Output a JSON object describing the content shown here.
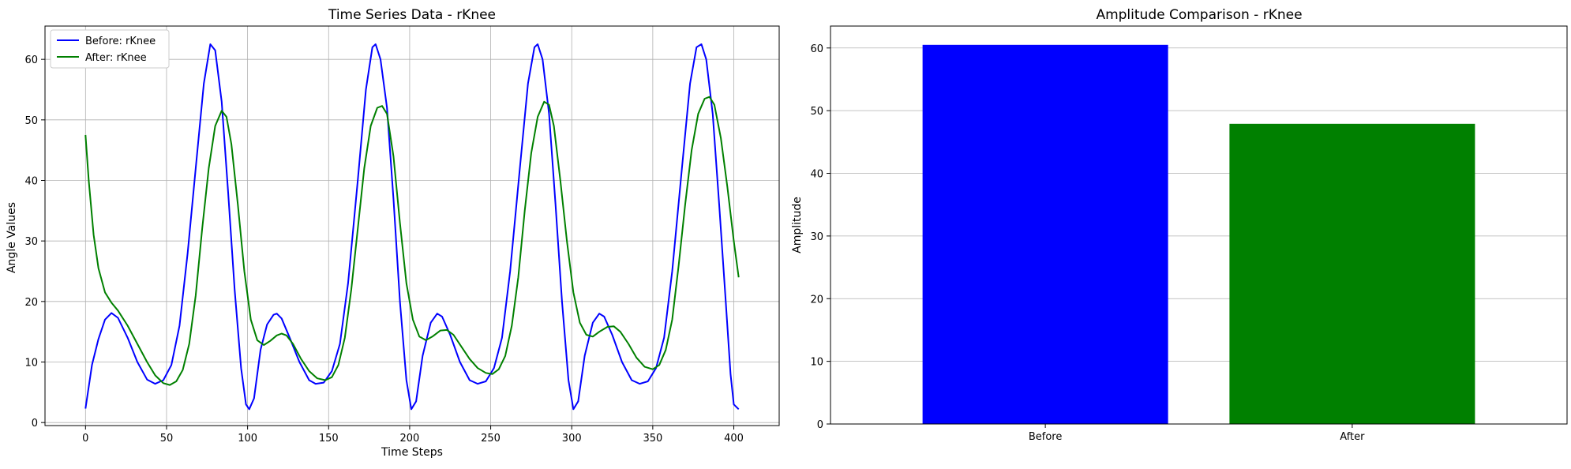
{
  "chart_data": [
    {
      "type": "line",
      "title": "Time Series Data - rKnee",
      "xlabel": "Time Steps",
      "ylabel": "Angle Values",
      "xlim": [
        -25,
        428
      ],
      "ylim": [
        -0.5,
        65.5
      ],
      "xticks": [
        0,
        50,
        100,
        150,
        200,
        250,
        300,
        350,
        400
      ],
      "yticks": [
        0,
        10,
        20,
        30,
        40,
        50,
        60
      ],
      "grid": true,
      "legend_position": "top-left",
      "series": [
        {
          "name": "Before: rKnee",
          "color": "#0000ff",
          "points": [
            [
              0,
              2.3
            ],
            [
              4,
              9.5
            ],
            [
              8,
              13.8
            ],
            [
              12,
              17
            ],
            [
              16,
              18.1
            ],
            [
              20,
              17.3
            ],
            [
              26,
              14
            ],
            [
              32,
              10
            ],
            [
              38,
              7.1
            ],
            [
              43,
              6.4
            ],
            [
              48,
              7
            ],
            [
              53,
              9.5
            ],
            [
              58,
              16
            ],
            [
              63,
              28
            ],
            [
              68,
              42
            ],
            [
              73,
              56
            ],
            [
              77,
              62.5
            ],
            [
              80,
              61.5
            ],
            [
              84,
              53
            ],
            [
              88,
              38
            ],
            [
              92,
              22
            ],
            [
              96,
              9
            ],
            [
              99,
              3
            ],
            [
              101,
              2.2
            ],
            [
              104,
              4
            ],
            [
              108,
              12
            ],
            [
              112,
              16.2
            ],
            [
              116,
              17.8
            ],
            [
              118,
              18
            ],
            [
              121,
              17.2
            ],
            [
              126,
              14
            ],
            [
              132,
              10
            ],
            [
              138,
              7
            ],
            [
              142,
              6.4
            ],
            [
              147,
              6.6
            ],
            [
              152,
              8.5
            ],
            [
              157,
              13
            ],
            [
              162,
              23
            ],
            [
              168,
              40
            ],
            [
              173,
              55
            ],
            [
              177,
              62
            ],
            [
              179,
              62.5
            ],
            [
              182,
              60
            ],
            [
              186,
              52
            ],
            [
              190,
              37
            ],
            [
              194,
              20
            ],
            [
              198,
              7
            ],
            [
              201,
              2.2
            ],
            [
              204,
              3.5
            ],
            [
              208,
              11
            ],
            [
              213,
              16.5
            ],
            [
              217,
              18
            ],
            [
              220,
              17.5
            ],
            [
              225,
              14.5
            ],
            [
              231,
              10
            ],
            [
              237,
              7
            ],
            [
              242,
              6.4
            ],
            [
              247,
              6.8
            ],
            [
              252,
              9
            ],
            [
              257,
              14
            ],
            [
              262,
              25
            ],
            [
              268,
              42
            ],
            [
              273,
              56
            ],
            [
              277,
              62
            ],
            [
              279,
              62.5
            ],
            [
              282,
              60
            ],
            [
              286,
              51
            ],
            [
              290,
              36
            ],
            [
              294,
              20
            ],
            [
              298,
              7
            ],
            [
              301,
              2.2
            ],
            [
              304,
              3.5
            ],
            [
              308,
              11
            ],
            [
              313,
              16.5
            ],
            [
              317,
              18
            ],
            [
              320,
              17.5
            ],
            [
              325,
              14.5
            ],
            [
              331,
              10
            ],
            [
              337,
              7
            ],
            [
              342,
              6.4
            ],
            [
              347,
              6.8
            ],
            [
              352,
              9
            ],
            [
              357,
              14
            ],
            [
              362,
              25
            ],
            [
              368,
              42
            ],
            [
              373,
              56
            ],
            [
              377,
              62
            ],
            [
              380,
              62.5
            ],
            [
              383,
              60
            ],
            [
              387,
              51
            ],
            [
              391,
              36
            ],
            [
              395,
              20
            ],
            [
              398,
              8
            ],
            [
              400,
              3
            ],
            [
              403,
              2.2
            ]
          ]
        },
        {
          "name": "After: rKnee",
          "color": "#008000",
          "points": [
            [
              0,
              47.5
            ],
            [
              2,
              40
            ],
            [
              5,
              31
            ],
            [
              8,
              25.5
            ],
            [
              12,
              21.5
            ],
            [
              16,
              19.8
            ],
            [
              20,
              18.5
            ],
            [
              26,
              16
            ],
            [
              32,
              13
            ],
            [
              38,
              10
            ],
            [
              43,
              7.8
            ],
            [
              48,
              6.5
            ],
            [
              52,
              6.2
            ],
            [
              56,
              6.8
            ],
            [
              60,
              8.7
            ],
            [
              64,
              13
            ],
            [
              68,
              21
            ],
            [
              72,
              32
            ],
            [
              76,
              42
            ],
            [
              80,
              49
            ],
            [
              84,
              51.5
            ],
            [
              87,
              50.5
            ],
            [
              90,
              46
            ],
            [
              94,
              36
            ],
            [
              98,
              25
            ],
            [
              102,
              17
            ],
            [
              106,
              13.6
            ],
            [
              110,
              12.8
            ],
            [
              114,
              13.5
            ],
            [
              118,
              14.4
            ],
            [
              121,
              14.7
            ],
            [
              124,
              14.4
            ],
            [
              128,
              13
            ],
            [
              133,
              10.5
            ],
            [
              138,
              8.5
            ],
            [
              143,
              7.3
            ],
            [
              148,
              7
            ],
            [
              152,
              7.5
            ],
            [
              156,
              9.5
            ],
            [
              160,
              14
            ],
            [
              164,
              22
            ],
            [
              168,
              32
            ],
            [
              172,
              42
            ],
            [
              176,
              49
            ],
            [
              180,
              52
            ],
            [
              183,
              52.3
            ],
            [
              186,
              51
            ],
            [
              190,
              44
            ],
            [
              194,
              33
            ],
            [
              198,
              23
            ],
            [
              202,
              17
            ],
            [
              206,
              14.2
            ],
            [
              210,
              13.6
            ],
            [
              214,
              14.2
            ],
            [
              219,
              15.2
            ],
            [
              223,
              15.3
            ],
            [
              227,
              14.5
            ],
            [
              232,
              12.5
            ],
            [
              237,
              10.5
            ],
            [
              242,
              9
            ],
            [
              247,
              8.2
            ],
            [
              251,
              8
            ],
            [
              255,
              8.8
            ],
            [
              259,
              11
            ],
            [
              263,
              16
            ],
            [
              267,
              24
            ],
            [
              271,
              35
            ],
            [
              275,
              44.5
            ],
            [
              279,
              50.5
            ],
            [
              283,
              53
            ],
            [
              286,
              52.5
            ],
            [
              289,
              49
            ],
            [
              293,
              40
            ],
            [
              297,
              30
            ],
            [
              301,
              21.5
            ],
            [
              305,
              16.5
            ],
            [
              309,
              14.5
            ],
            [
              313,
              14.2
            ],
            [
              317,
              15
            ],
            [
              322,
              15.8
            ],
            [
              326,
              15.9
            ],
            [
              330,
              15
            ],
            [
              335,
              13
            ],
            [
              340,
              10.7
            ],
            [
              345,
              9.2
            ],
            [
              350,
              8.8
            ],
            [
              354,
              9.5
            ],
            [
              358,
              12
            ],
            [
              362,
              17
            ],
            [
              366,
              26
            ],
            [
              370,
              36
            ],
            [
              374,
              45
            ],
            [
              378,
              51
            ],
            [
              382,
              53.5
            ],
            [
              385,
              53.8
            ],
            [
              388,
              52.5
            ],
            [
              392,
              47
            ],
            [
              396,
              39
            ],
            [
              400,
              30
            ],
            [
              403,
              24
            ]
          ]
        }
      ]
    },
    {
      "type": "bar",
      "title": "Amplitude Comparison - rKnee",
      "xlabel": "",
      "ylabel": "Amplitude",
      "categories": [
        "Before",
        "After"
      ],
      "values": [
        60.5,
        47.9
      ],
      "colors": [
        "#0000ff",
        "#008000"
      ],
      "ylim": [
        0,
        63.5
      ],
      "yticks": [
        0,
        10,
        20,
        30,
        40,
        50,
        60
      ],
      "grid": true
    }
  ]
}
